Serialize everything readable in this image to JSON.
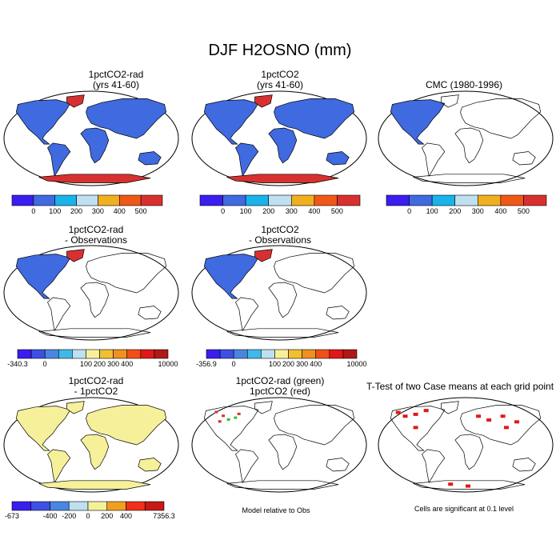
{
  "title": "DJF H2OSNO (mm)",
  "panels": [
    {
      "title": "1pctCO2-rad\n(yrs 41-60)"
    },
    {
      "title": "1pctCO2\n(yrs 41-60)"
    },
    {
      "title": "CMC (1980-1996)"
    },
    {
      "title": "1pctCO2-rad\n- Observations"
    },
    {
      "title": "1pctCO2\n- Observations"
    },
    {
      "title": "1pctCO2-rad\n- 1pctCO2"
    },
    {
      "title": "1pctCO2-rad (green)\n1pctCO2 (red)"
    },
    {
      "title": "T-Test of two Case means at each grid point"
    }
  ],
  "notes": {
    "model_vs_obs": "Model relative to Obs",
    "significance": "Cells are significant at 0.1 level"
  },
  "colorbars": {
    "abs": {
      "colors": [
        "#3a1ef0",
        "#3f6ae0",
        "#1ab3ea",
        "#bfe0f0",
        "#f0b020",
        "#f05818",
        "#d83030"
      ],
      "labels": [
        "0",
        "100",
        "200",
        "300",
        "400",
        "500"
      ]
    },
    "diff_obs_rad": {
      "colors": [
        "#3a1ef0",
        "#3d50e6",
        "#4a86e0",
        "#40b8ea",
        "#bee0f0",
        "#f6f09a",
        "#f0c030",
        "#f09020",
        "#f05018",
        "#e01818",
        "#b01818"
      ],
      "labels": [
        "-340.3",
        "0",
        "100",
        "200",
        "300",
        "400",
        "10000"
      ]
    },
    "diff_obs_co2": {
      "colors": [
        "#3a1ef0",
        "#3d50e6",
        "#4a86e0",
        "#40b8ea",
        "#bee0f0",
        "#f6f09a",
        "#f0c030",
        "#f09020",
        "#f05018",
        "#e01818",
        "#b01818"
      ],
      "labels": [
        "-356.9",
        "0",
        "100",
        "200",
        "300",
        "400",
        "10000"
      ]
    },
    "diff_case": {
      "colors": [
        "#3a1ef0",
        "#3d50e6",
        "#4a86e0",
        "#bee0f0",
        "#f6f09a",
        "#f0a020",
        "#f03018",
        "#c81818"
      ],
      "labels": [
        "-673",
        "-400",
        "-200",
        "0",
        "200",
        "400",
        "7356.3"
      ]
    }
  },
  "chart_data": [
    {
      "type": "heatmap",
      "title": "1pctCO2-rad (yrs 41-60)",
      "colorbar_labels": [
        "0",
        "100",
        "200",
        "300",
        "400",
        "500"
      ],
      "units": "mm"
    },
    {
      "type": "heatmap",
      "title": "1pctCO2 (yrs 41-60)",
      "colorbar_labels": [
        "0",
        "100",
        "200",
        "300",
        "400",
        "500"
      ],
      "units": "mm"
    },
    {
      "type": "heatmap",
      "title": "CMC (1980-1996)",
      "colorbar_labels": [
        "0",
        "100",
        "200",
        "300",
        "400",
        "500"
      ],
      "units": "mm"
    },
    {
      "type": "heatmap",
      "title": "1pctCO2-rad - Observations",
      "colorbar_labels": [
        "-340.3",
        "0",
        "100",
        "200",
        "300",
        "400",
        "10000"
      ]
    },
    {
      "type": "heatmap",
      "title": "1pctCO2 - Observations",
      "colorbar_labels": [
        "-356.9",
        "0",
        "100",
        "200",
        "300",
        "400",
        "10000"
      ]
    },
    {
      "type": "heatmap",
      "title": "1pctCO2-rad - 1pctCO2",
      "colorbar_labels": [
        "-673",
        "-400",
        "-200",
        "0",
        "200",
        "400",
        "7356.3"
      ]
    },
    {
      "type": "heatmap",
      "title": "1pctCO2-rad (green) 1pctCO2 (red)"
    },
    {
      "type": "heatmap",
      "title": "T-Test of two Case means at each grid point"
    }
  ]
}
